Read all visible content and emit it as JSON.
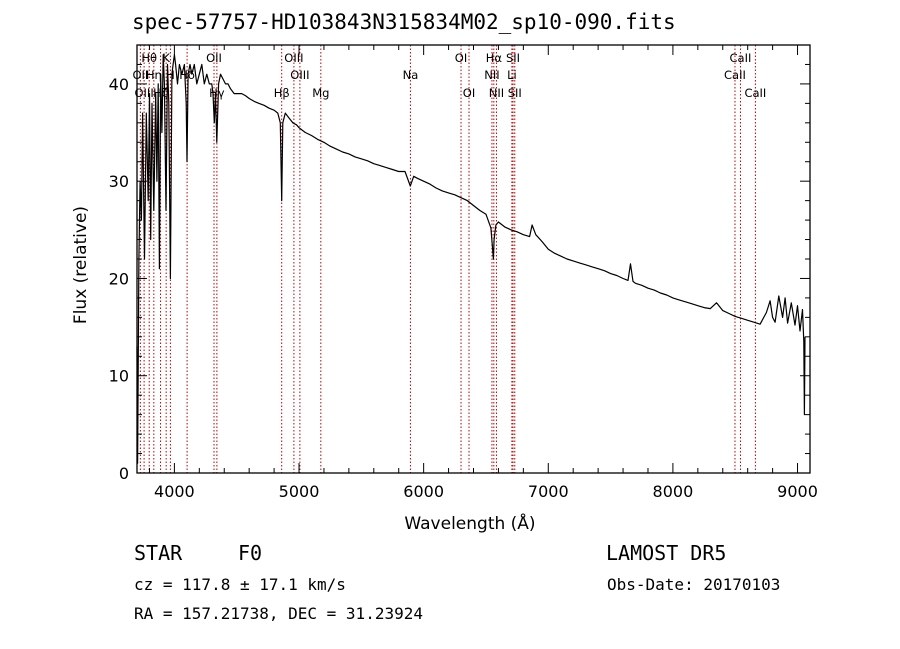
{
  "title": "spec-57757-HD103843N315834M02_sp10-090.fits",
  "footer": {
    "object_class": "STAR",
    "subclass": "F0",
    "survey": "LAMOST DR5",
    "redshift": "cz = 117.8 ± 17.1 km/s",
    "obs_date": "Obs-Date: 20170103",
    "coords": "RA = 157.21738, DEC =  31.23924"
  },
  "colors": {
    "axes": "#000000",
    "spectrum": "#000000",
    "lines": "#c00000"
  },
  "chart_data": {
    "type": "line",
    "title": "spec-57757-HD103843N315834M02_sp10-090.fits",
    "xlabel": "Wavelength (Å)",
    "ylabel": "Flux (relative)",
    "xlim": [
      3700,
      9100
    ],
    "ylim": [
      0,
      44
    ],
    "xticks": [
      4000,
      5000,
      6000,
      7000,
      8000,
      9000
    ],
    "yticks": [
      0,
      10,
      20,
      30,
      40
    ],
    "series": [
      {
        "x": [
          3700,
          3705,
          3715,
          3725,
          3735,
          3745,
          3760,
          3775,
          3790,
          3800,
          3810,
          3820,
          3835,
          3850,
          3860,
          3870,
          3880,
          3890,
          3900,
          3910,
          3920,
          3933,
          3945,
          3955,
          3968,
          3980,
          3990,
          4000,
          4010,
          4025,
          4040,
          4060,
          4080,
          4095,
          4101,
          4110,
          4125,
          4140,
          4160,
          4180,
          4200,
          4220,
          4240,
          4260,
          4280,
          4300,
          4310,
          4320,
          4330,
          4340,
          4345,
          4355,
          4370,
          4390,
          4410,
          4430,
          4450,
          4480,
          4510,
          4540,
          4570,
          4600,
          4640,
          4680,
          4720,
          4760,
          4800,
          4830,
          4850,
          4861,
          4870,
          4890,
          4920,
          4950,
          4980,
          5000,
          5050,
          5100,
          5150,
          5200,
          5250,
          5300,
          5350,
          5400,
          5450,
          5500,
          5550,
          5600,
          5650,
          5700,
          5750,
          5800,
          5850,
          5893,
          5920,
          5950,
          6000,
          6050,
          6100,
          6150,
          6200,
          6250,
          6300,
          6350,
          6400,
          6450,
          6500,
          6540,
          6560,
          6565,
          6580,
          6600,
          6650,
          6700,
          6750,
          6800,
          6850,
          6870,
          6900,
          6950,
          7000,
          7050,
          7100,
          7150,
          7200,
          7250,
          7300,
          7350,
          7400,
          7450,
          7500,
          7550,
          7600,
          7640,
          7660,
          7680,
          7700,
          7750,
          7800,
          7850,
          7900,
          7950,
          8000,
          8050,
          8100,
          8150,
          8200,
          8250,
          8300,
          8350,
          8400,
          8450,
          8500,
          8550,
          8600,
          8650,
          8700,
          8750,
          8780,
          8800,
          8820,
          8850,
          8880,
          8900,
          8920,
          8950,
          8980,
          9000,
          9020,
          9040,
          9050,
          9055,
          9060
        ],
        "y": [
          13,
          1,
          22,
          30,
          26,
          37,
          22,
          37,
          28,
          39,
          24,
          38,
          27,
          39,
          30,
          40,
          21,
          41,
          35,
          43,
          40,
          27,
          42,
          38,
          20,
          41,
          42,
          43,
          42,
          40,
          42,
          41,
          42,
          38,
          32,
          41,
          42,
          41,
          42,
          40,
          41,
          42,
          40,
          41,
          40,
          40,
          39,
          36,
          39,
          34,
          36,
          40,
          41,
          40.5,
          40,
          40,
          39.5,
          39,
          39,
          39,
          38.8,
          38.5,
          38.2,
          38,
          37.8,
          37.5,
          37.3,
          37,
          36,
          28,
          36,
          37,
          36.5,
          36,
          35.8,
          35.5,
          35,
          34.7,
          34.3,
          34,
          33.6,
          33.3,
          33,
          32.8,
          32.5,
          32.3,
          32.1,
          31.8,
          31.6,
          31.4,
          31.2,
          31,
          31,
          29.5,
          30.5,
          30.3,
          30,
          29.7,
          29.3,
          29,
          28.8,
          28.6,
          28.3,
          28,
          27.5,
          27,
          26.6,
          25.2,
          22,
          24,
          25.5,
          25.8,
          25.3,
          25,
          24.8,
          24.5,
          24.3,
          25.5,
          24.5,
          23.8,
          23,
          22.6,
          22.3,
          22,
          21.8,
          21.6,
          21.4,
          21.2,
          21,
          20.8,
          20.5,
          20.3,
          20,
          19.8,
          21.5,
          19.7,
          19.5,
          19.3,
          19,
          18.8,
          18.5,
          18.3,
          18,
          17.8,
          17.6,
          17.4,
          17.2,
          17,
          16.9,
          17.5,
          16.7,
          16.4,
          16.1,
          15.9,
          15.7,
          15.5,
          15.3,
          16.5,
          17.7,
          16,
          15.5,
          18.2,
          16,
          18,
          15.4,
          17.5,
          15.2,
          17.2,
          14.6,
          16.8,
          13.5,
          6,
          14
        ]
      }
    ],
    "lines": [
      {
        "label": "Hθ",
        "x": 3798,
        "row": 0
      },
      {
        "label": "OII",
        "x": 3727,
        "row": 1
      },
      {
        "label": "OIII",
        "x": 3757,
        "row": 2
      },
      {
        "label": "Hη",
        "x": 3835,
        "row": 1
      },
      {
        "label": "Hζ",
        "x": 3889,
        "row": 2
      },
      {
        "label": "K",
        "x": 3934,
        "row": 0
      },
      {
        "label": "H",
        "x": 3968,
        "row": 1
      },
      {
        "label": "Hδ",
        "x": 4102,
        "row": 1
      },
      {
        "label": "OII",
        "x": 4318,
        "row": 0
      },
      {
        "label": "Hγ",
        "x": 4341,
        "row": 2
      },
      {
        "label": "OIII",
        "x": 4959,
        "row": 0
      },
      {
        "label": "OIII",
        "x": 5007,
        "row": 1
      },
      {
        "label": "Hβ",
        "x": 4861,
        "row": 2
      },
      {
        "label": "Mg",
        "x": 5175,
        "row": 2
      },
      {
        "label": "Na",
        "x": 5894,
        "row": 1
      },
      {
        "label": "OI",
        "x": 6300,
        "row": 0
      },
      {
        "label": "OI",
        "x": 6364,
        "row": 2
      },
      {
        "label": "Hα",
        "x": 6563,
        "row": 0
      },
      {
        "label": "NII",
        "x": 6548,
        "row": 1
      },
      {
        "label": "NII",
        "x": 6584,
        "row": 2
      },
      {
        "label": "SII",
        "x": 6717,
        "row": 0
      },
      {
        "label": "Li",
        "x": 6708,
        "row": 1
      },
      {
        "label": "SII",
        "x": 6731,
        "row": 2
      },
      {
        "label": "CaII",
        "x": 8542,
        "row": 0
      },
      {
        "label": "CaII",
        "x": 8498,
        "row": 1
      },
      {
        "label": "CaII",
        "x": 8662,
        "row": 2
      }
    ]
  }
}
